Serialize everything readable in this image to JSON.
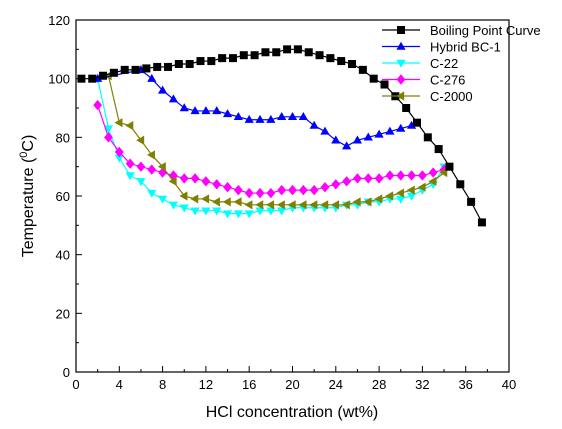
{
  "chart_data": {
    "type": "line",
    "title": "",
    "xlabel": "HCl concentration (wt%)",
    "ylabel_main": "Temperature (",
    "ylabel_sup": "0",
    "ylabel_end": "C)",
    "xlim": [
      0,
      40
    ],
    "ylim": [
      0,
      120
    ],
    "x_ticks": [
      "0",
      "4",
      "8",
      "12",
      "16",
      "20",
      "24",
      "28",
      "32",
      "36",
      "40"
    ],
    "y_ticks": [
      "0",
      "20",
      "40",
      "60",
      "80",
      "100",
      "120"
    ],
    "grid": false,
    "legend_position": "top-right",
    "series": [
      {
        "name": "Boiling Point Curve",
        "color": "#000000",
        "marker": "square",
        "x": [
          0.5,
          1.5,
          2.5,
          3.5,
          4.5,
          5.5,
          6.5,
          7.5,
          8.5,
          9.5,
          10.5,
          11.5,
          12.5,
          13.5,
          14.5,
          15.5,
          16.5,
          17.5,
          18.5,
          19.5,
          20.5,
          21.5,
          22.5,
          23.5,
          24.5,
          25.5,
          26.5,
          27.5,
          28.5,
          29.5,
          30.5,
          31.5,
          32.5,
          33.5,
          34.5,
          35.5,
          36.5,
          37.5
        ],
        "y": [
          100,
          100,
          101,
          102,
          103,
          103,
          103.5,
          104,
          104,
          105,
          105,
          106,
          106,
          107,
          107,
          108,
          108,
          109,
          109,
          110,
          110,
          109,
          108,
          107,
          106,
          105,
          103,
          100,
          98,
          94,
          90,
          85,
          80,
          76,
          70,
          64,
          58,
          51
        ]
      },
      {
        "name": "Hybrid BC-1",
        "color": "#0000ff",
        "marker": "triangle-up",
        "x": [
          2,
          6,
          7,
          8,
          9,
          10,
          11,
          12,
          13,
          14,
          15,
          16,
          17,
          18,
          19,
          20,
          21,
          22,
          23,
          24,
          25,
          26,
          27,
          28,
          29,
          30,
          31
        ],
        "y": [
          100,
          103,
          100,
          96,
          93,
          90,
          89,
          89,
          89,
          88,
          87,
          86,
          86,
          86,
          87,
          87,
          87,
          84,
          82,
          79,
          77,
          79,
          80,
          81,
          82,
          83,
          84
        ]
      },
      {
        "name": "C-22",
        "color": "#00ffff",
        "marker": "triangle-down",
        "x": [
          2,
          3,
          4,
          5,
          6,
          7,
          8,
          9,
          10,
          11,
          12,
          13,
          14,
          15,
          16,
          17,
          18,
          19,
          20,
          21,
          22,
          23,
          24,
          25,
          26,
          27,
          28,
          29,
          30,
          31,
          32,
          33,
          34
        ],
        "y": [
          100,
          83,
          73,
          67,
          65,
          61,
          59,
          57,
          56,
          55,
          55,
          55,
          54,
          54,
          54,
          55,
          55,
          55,
          56,
          56,
          56,
          56,
          56,
          57,
          57,
          58,
          58,
          59,
          59,
          60,
          62,
          64,
          70
        ]
      },
      {
        "name": "C-276",
        "color": "#ff00ff",
        "marker": "diamond",
        "x": [
          2,
          3,
          4,
          5,
          6,
          7,
          8,
          9,
          10,
          11,
          12,
          13,
          14,
          15,
          16,
          17,
          18,
          19,
          20,
          21,
          22,
          23,
          24,
          25,
          26,
          27,
          28,
          29,
          30,
          31,
          32,
          33,
          34
        ],
        "y": [
          91,
          80,
          75,
          71,
          70,
          69,
          68,
          67,
          66,
          66,
          65,
          64,
          63,
          62,
          61,
          61,
          61,
          62,
          62,
          62,
          62,
          63,
          64,
          65,
          66,
          66,
          66,
          67,
          67,
          67,
          67,
          68,
          69
        ]
      },
      {
        "name": "C-2000",
        "color": "#808000",
        "marker": "triangle-left",
        "x": [
          3,
          4,
          5,
          6,
          7,
          8,
          9,
          10,
          11,
          12,
          13,
          14,
          15,
          16,
          17,
          18,
          19,
          20,
          21,
          22,
          23,
          24,
          25,
          26,
          27,
          28,
          29,
          30,
          31,
          32,
          33,
          34
        ],
        "y": [
          101,
          85,
          84,
          79,
          74,
          70,
          65,
          60,
          59,
          59,
          58,
          58,
          58,
          57,
          57,
          57,
          57,
          57,
          57,
          57,
          57,
          57,
          57,
          58,
          58,
          59,
          60,
          61,
          62,
          63,
          65,
          68
        ]
      }
    ]
  }
}
